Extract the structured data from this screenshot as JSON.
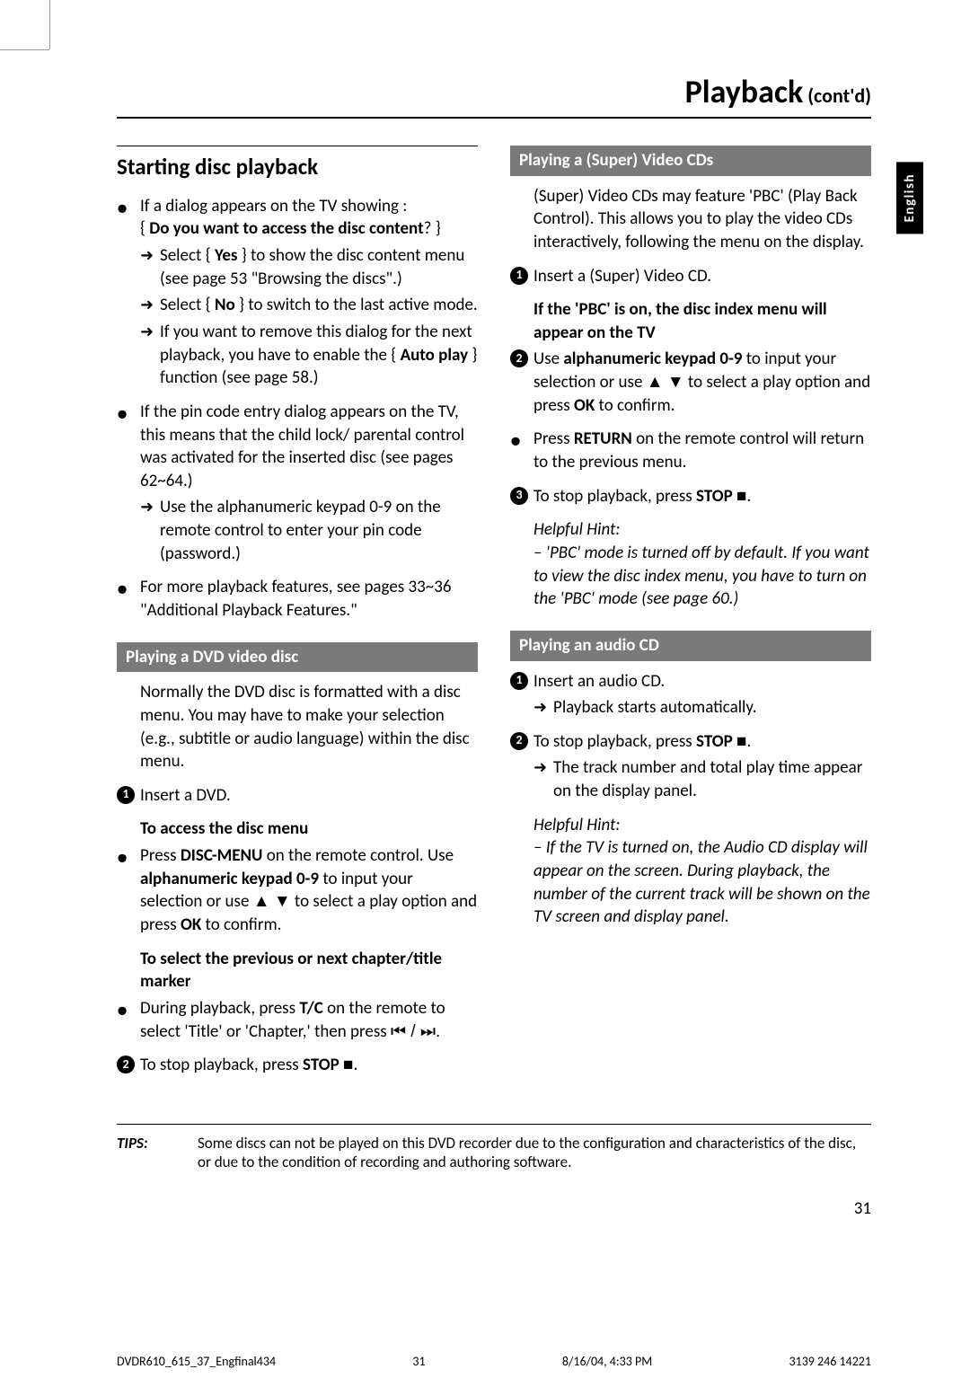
{
  "cropmarks": true,
  "title": {
    "main": "Playback",
    "sub": " (cont'd)"
  },
  "langTab": "English",
  "left": {
    "sectionTitle": "Starting disc playback",
    "b1": {
      "l1": "If a dialog appears on the TV showing :",
      "q": "Do you want to access the disc content",
      "a1a": "Select { ",
      "a1yes": "Yes",
      "a1b": " } to show the disc content menu (see page 53 \"Browsing the discs\".)",
      "a2a": "Select { ",
      "a2no": "No",
      "a2b": " } to switch to the last active mode.",
      "a3a": "If you want to remove this dialog for the next playback, you have to enable the { ",
      "a3auto": "Auto play",
      "a3b": " } function (see page 58.)"
    },
    "b2": "If the pin code entry dialog appears on the TV, this means that the child lock/ parental control was activated for the inserted disc (see pages 62~64.)",
    "b2a": "Use the alphanumeric keypad 0-9 on the remote control to enter your pin code (password.)",
    "b3": "For more playback features, see pages 33~36 \"Additional Playback Features.\"",
    "dvdHeader": "Playing a DVD video disc",
    "dvdIntro": "Normally the DVD disc is formatted with a disc menu.  You may have to make your selection (e.g., subtitle or audio language) within the disc menu.",
    "s1": "Insert a DVD.",
    "accessTitle": "To access the disc menu",
    "access": {
      "a": "Press ",
      "b": "DISC-MENU",
      "c": " on the remote control.  Use ",
      "d": "alphanumeric keypad 0-9",
      "e": " to input your selection or use ▲ ▼ to select a play option and press ",
      "f": "OK",
      "g": " to confirm."
    },
    "chapterTitle": "To select the previous or next chapter/title marker",
    "chapter": {
      "a": "During playback, press ",
      "b": "T/C",
      "c": " on the remote to select 'Title' or 'Chapter,' then press ",
      "d": "⏮ / ⏭."
    },
    "stop": {
      "a": "To stop playback, press ",
      "b": "STOP",
      "c": " ■."
    }
  },
  "right": {
    "svcdHeader": "Playing a (Super) Video CDs",
    "svcdIntro": "(Super) Video CDs may feature 'PBC' (Play Back Control).  This allows you to play the video CDs interactively, following the menu on the display.",
    "s1": "Insert a (Super) Video CD.",
    "pbcTitle": "If the 'PBC' is on, the disc index menu will appear on the TV",
    "s2": {
      "a": "Use ",
      "b": "alphanumeric keypad 0-9",
      "c": " to input your selection or use ▲ ▼ to select a play option and press ",
      "d": "OK",
      "e": " to confirm."
    },
    "ret": {
      "a": "Press ",
      "b": "RETURN",
      "c": " on the remote control will return to the previous menu."
    },
    "s3": {
      "a": "To stop playback, press ",
      "b": "STOP",
      "c": " ■."
    },
    "hint1Label": "Helpful Hint:",
    "hint1": "– 'PBC' mode is turned off by default.  If you want to view the disc index menu, you have to turn on the 'PBC' mode (see page 60.)",
    "cdHeader": "Playing an audio CD",
    "cd1": "Insert an audio CD.",
    "cd1a": "Playback starts automatically.",
    "cd2": {
      "a": "To stop playback, press ",
      "b": "STOP",
      "c": " ■."
    },
    "cd2a": "The track number and total play time appear on the display panel.",
    "hint2Label": "Helpful Hint:",
    "hint2": "–  If the TV is turned on, the Audio CD display will appear on the screen. During playback, the number of the current track will be shown on the TV screen and display panel."
  },
  "tips": {
    "label": "TIPS:",
    "text": "Some discs can not be played on this DVD recorder due to the configuration and characteristics of the disc, or due to the condition of recording and authoring software."
  },
  "pageNum": "31",
  "footer": {
    "file": "DVDR610_615_37_Engfinal434",
    "p": "31",
    "date": "8/16/04, 4:33 PM",
    "code": "3139 246 14221"
  }
}
